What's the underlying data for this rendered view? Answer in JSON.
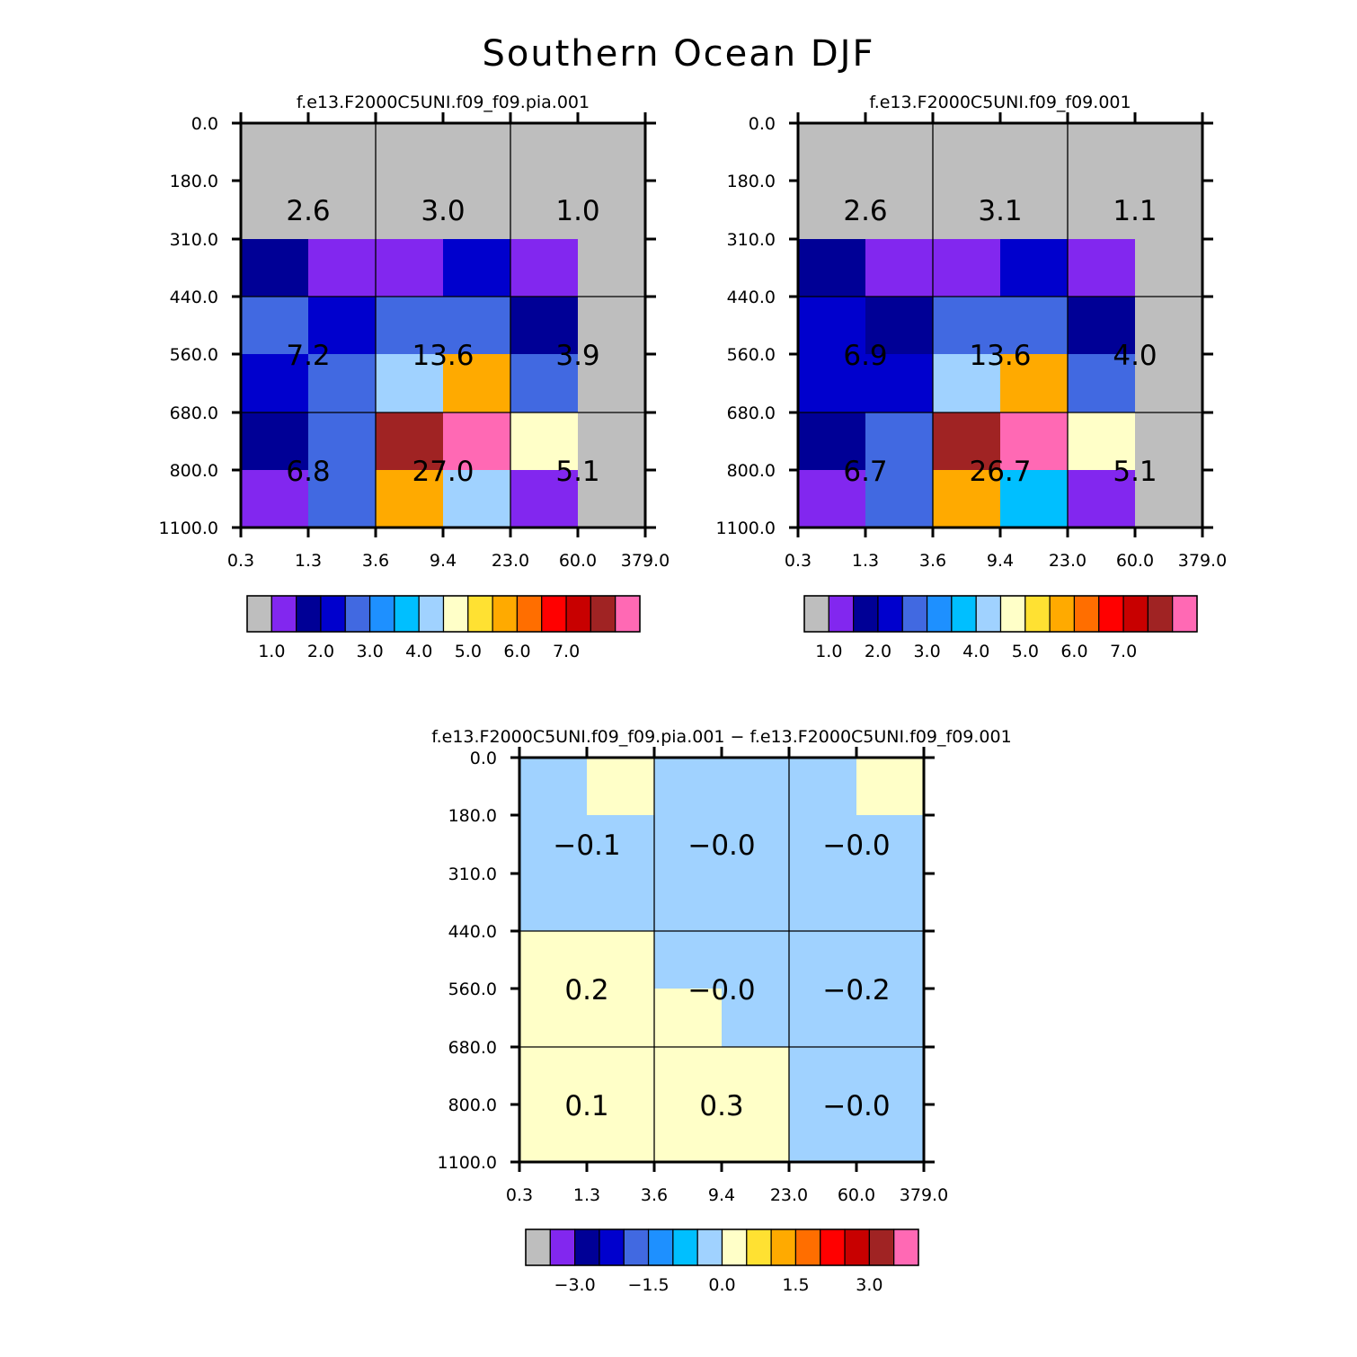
{
  "title": "Southern Ocean DJF",
  "palette": [
    "#bebebe",
    "#8227ef",
    "#000096",
    "#0000cd",
    "#4169e1",
    "#1e90ff",
    "#00bfff",
    "#a0d2ff",
    "#ffffc8",
    "#ffe132",
    "#ffaa00",
    "#ff6e00",
    "#ff0000",
    "#c80000",
    "#a02323",
    "#ff69b4"
  ],
  "chart_data": [
    {
      "type": "heatmap",
      "title": "f.e13.F2000C5UNI.f09_f09.pia.001",
      "x_ticks": [
        "0.3",
        "1.3",
        "3.6",
        "9.4",
        "23.0",
        "60.0",
        "379.0"
      ],
      "y_ticks": [
        "0.0",
        "180.0",
        "310.0",
        "440.0",
        "560.0",
        "680.0",
        "800.0",
        "1100.0"
      ],
      "cell_colors": [
        [
          0,
          0,
          0,
          0,
          0,
          0
        ],
        [
          0,
          0,
          0,
          0,
          0,
          0
        ],
        [
          2,
          1,
          1,
          3,
          1,
          0
        ],
        [
          4,
          3,
          4,
          4,
          2,
          0
        ],
        [
          3,
          4,
          7,
          10,
          4,
          0
        ],
        [
          2,
          4,
          14,
          15,
          8,
          0
        ],
        [
          1,
          4,
          10,
          7,
          1,
          0
        ]
      ],
      "block_values": [
        [
          "2.6",
          "3.0",
          "1.0"
        ],
        [
          "7.2",
          "13.6",
          "3.9"
        ],
        [
          "6.8",
          "27.0",
          "5.1"
        ]
      ],
      "colorbar_labels": [
        "1.0",
        "2.0",
        "3.0",
        "4.0",
        "5.0",
        "6.0",
        "7.0"
      ]
    },
    {
      "type": "heatmap",
      "title": "f.e13.F2000C5UNI.f09_f09.001",
      "x_ticks": [
        "0.3",
        "1.3",
        "3.6",
        "9.4",
        "23.0",
        "60.0",
        "379.0"
      ],
      "y_ticks": [
        "0.0",
        "180.0",
        "310.0",
        "440.0",
        "560.0",
        "680.0",
        "800.0",
        "1100.0"
      ],
      "cell_colors": [
        [
          0,
          0,
          0,
          0,
          0,
          0
        ],
        [
          0,
          0,
          0,
          0,
          0,
          0
        ],
        [
          2,
          1,
          1,
          3,
          1,
          0
        ],
        [
          3,
          2,
          4,
          4,
          2,
          0
        ],
        [
          3,
          3,
          7,
          10,
          4,
          0
        ],
        [
          2,
          4,
          14,
          15,
          8,
          0
        ],
        [
          1,
          4,
          10,
          6,
          1,
          0
        ]
      ],
      "block_values": [
        [
          "2.6",
          "3.1",
          "1.1"
        ],
        [
          "6.9",
          "13.6",
          "4.0"
        ],
        [
          "6.7",
          "26.7",
          "5.1"
        ]
      ],
      "colorbar_labels": [
        "1.0",
        "2.0",
        "3.0",
        "4.0",
        "5.0",
        "6.0",
        "7.0"
      ]
    },
    {
      "type": "heatmap",
      "title": "f.e13.F2000C5UNI.f09_f09.pia.001 − f.e13.F2000C5UNI.f09_f09.001",
      "x_ticks": [
        "0.3",
        "1.3",
        "3.6",
        "9.4",
        "23.0",
        "60.0",
        "379.0"
      ],
      "y_ticks": [
        "0.0",
        "180.0",
        "310.0",
        "440.0",
        "560.0",
        "680.0",
        "800.0",
        "1100.0"
      ],
      "cell_colors": [
        [
          7,
          8,
          7,
          7,
          7,
          8
        ],
        [
          7,
          7,
          7,
          7,
          7,
          7
        ],
        [
          7,
          7,
          7,
          7,
          7,
          7
        ],
        [
          8,
          8,
          7,
          7,
          7,
          7
        ],
        [
          8,
          8,
          8,
          7,
          7,
          7
        ],
        [
          8,
          8,
          8,
          8,
          7,
          7
        ],
        [
          8,
          8,
          8,
          8,
          7,
          7
        ]
      ],
      "block_values": [
        [
          "-0.1",
          "-0.0",
          "-0.0"
        ],
        [
          "0.2",
          "-0.0",
          "-0.2"
        ],
        [
          "0.1",
          "0.3",
          "-0.0"
        ]
      ],
      "colorbar_labels": [
        "-3.0",
        "-1.5",
        "0.0",
        "1.5",
        "3.0"
      ]
    }
  ]
}
